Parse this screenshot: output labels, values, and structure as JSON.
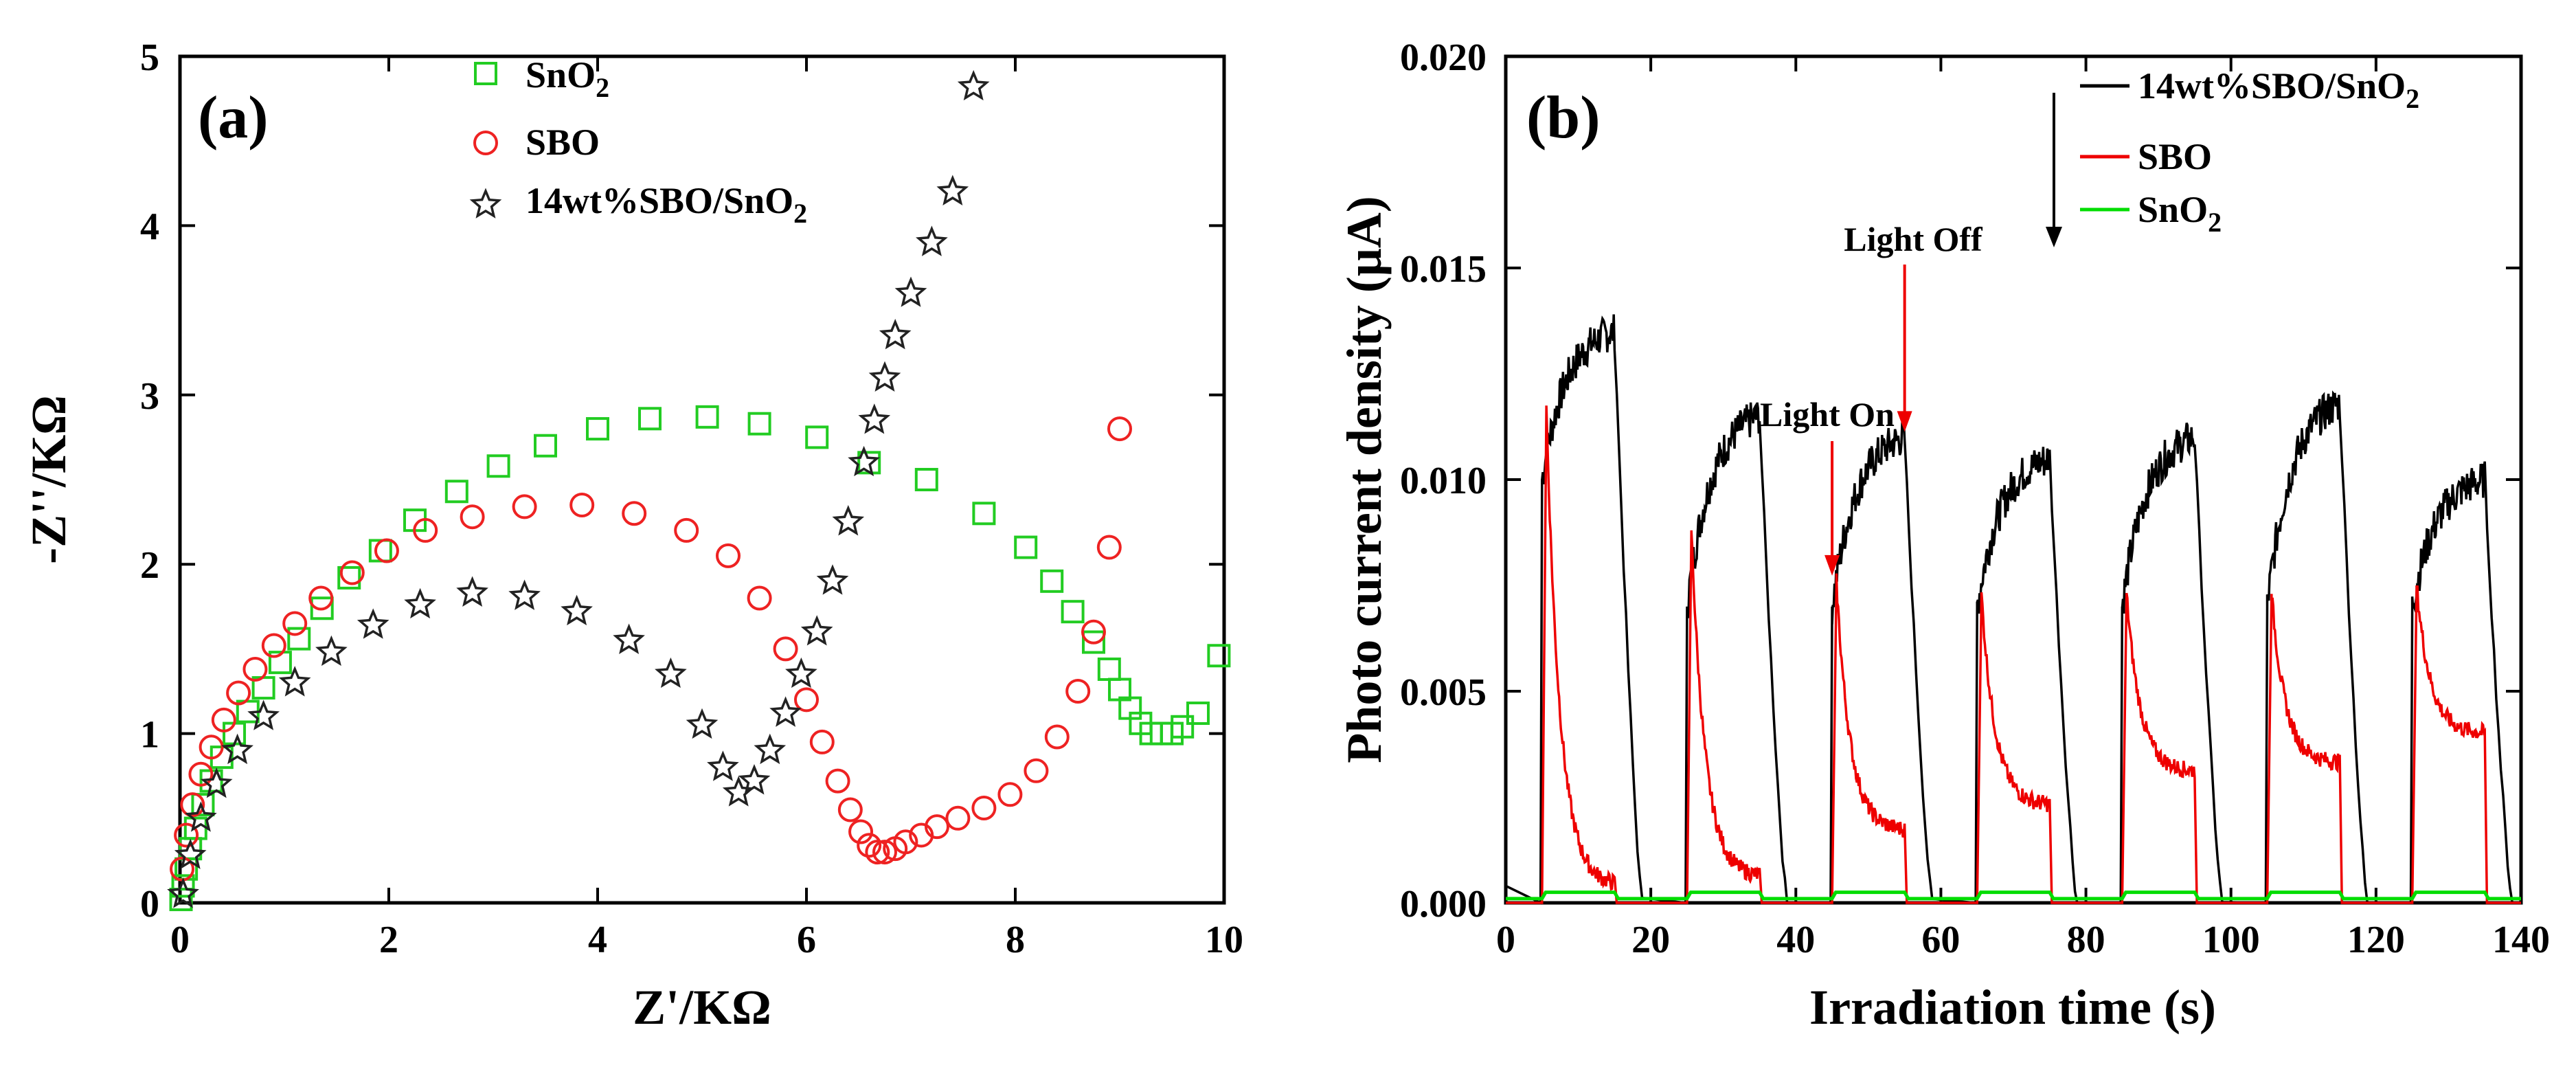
{
  "chart_data": [
    {
      "type": "scatter",
      "panel_label": "(a)",
      "xlabel": "Z'/KΩ",
      "ylabel": "-Z''/KΩ",
      "xlim": [
        0,
        10
      ],
      "ylim": [
        0,
        5
      ],
      "xticks": [
        0,
        2,
        4,
        6,
        8,
        10
      ],
      "yticks": [
        0,
        1,
        2,
        3,
        4,
        5
      ],
      "legend_position": "top-center",
      "series": [
        {
          "name": "SnO",
          "name_sub": "2",
          "color": "#22cc22",
          "marker": "square",
          "x": [
            0.01,
            0.03,
            0.06,
            0.1,
            0.15,
            0.22,
            0.3,
            0.4,
            0.52,
            0.65,
            0.8,
            0.96,
            1.14,
            1.36,
            1.62,
            1.92,
            2.25,
            2.65,
            3.05,
            3.5,
            4.0,
            4.5,
            5.05,
            5.55,
            6.1,
            6.6,
            7.15,
            7.7,
            8.1,
            8.35,
            8.55,
            8.75,
            8.9,
            9.0,
            9.1,
            9.2,
            9.3,
            9.4,
            9.5,
            9.6,
            9.75,
            9.95
          ],
          "y": [
            0.02,
            0.1,
            0.2,
            0.32,
            0.44,
            0.58,
            0.72,
            0.86,
            1.0,
            1.13,
            1.27,
            1.42,
            1.56,
            1.74,
            1.92,
            2.08,
            2.26,
            2.43,
            2.58,
            2.7,
            2.8,
            2.86,
            2.87,
            2.83,
            2.75,
            2.6,
            2.5,
            2.3,
            2.1,
            1.9,
            1.72,
            1.54,
            1.38,
            1.26,
            1.15,
            1.06,
            1.0,
            1.0,
            1.0,
            1.04,
            1.12,
            1.46
          ]
        },
        {
          "name": "SBO",
          "color": "#ee2222",
          "marker": "circle",
          "x": [
            0.02,
            0.06,
            0.12,
            0.2,
            0.3,
            0.42,
            0.56,
            0.72,
            0.9,
            1.1,
            1.35,
            1.65,
            1.98,
            2.35,
            2.8,
            3.3,
            3.85,
            4.35,
            4.85,
            5.25,
            5.55,
            5.8,
            6.0,
            6.15,
            6.3,
            6.42,
            6.52,
            6.6,
            6.68,
            6.75,
            6.85,
            6.95,
            7.1,
            7.25,
            7.45,
            7.7,
            7.95,
            8.2,
            8.4,
            8.6,
            8.75,
            8.9,
            9.0
          ],
          "y": [
            0.2,
            0.4,
            0.58,
            0.76,
            0.92,
            1.08,
            1.24,
            1.38,
            1.52,
            1.65,
            1.8,
            1.95,
            2.08,
            2.2,
            2.28,
            2.34,
            2.35,
            2.3,
            2.2,
            2.05,
            1.8,
            1.5,
            1.2,
            0.95,
            0.72,
            0.55,
            0.42,
            0.34,
            0.3,
            0.3,
            0.32,
            0.36,
            0.4,
            0.45,
            0.5,
            0.56,
            0.64,
            0.78,
            0.98,
            1.25,
            1.6,
            2.1,
            2.8
          ]
        },
        {
          "name": "14wt%SBO/SnO",
          "name_sub": "2",
          "color": "#222222",
          "marker": "star",
          "x": [
            0.03,
            0.1,
            0.2,
            0.35,
            0.55,
            0.8,
            1.1,
            1.45,
            1.85,
            2.3,
            2.8,
            3.3,
            3.8,
            4.3,
            4.7,
            5.0,
            5.2,
            5.35,
            5.5,
            5.65,
            5.8,
            5.95,
            6.1,
            6.25,
            6.4,
            6.55,
            6.65,
            6.75,
            6.85,
            7.0,
            7.2,
            7.4,
            7.6
          ],
          "y": [
            0.05,
            0.28,
            0.5,
            0.7,
            0.9,
            1.1,
            1.3,
            1.48,
            1.64,
            1.76,
            1.83,
            1.81,
            1.72,
            1.55,
            1.35,
            1.05,
            0.8,
            0.65,
            0.72,
            0.9,
            1.12,
            1.35,
            1.6,
            1.9,
            2.25,
            2.6,
            2.85,
            3.1,
            3.35,
            3.6,
            3.9,
            4.2,
            4.82
          ]
        }
      ]
    },
    {
      "type": "line",
      "panel_label": "(b)",
      "xlabel": "Irradiation time (s)",
      "ylabel": "Photo current density (μA)",
      "xlim": [
        0,
        140
      ],
      "ylim": [
        0,
        0.02
      ],
      "xticks": [
        0,
        20,
        40,
        60,
        80,
        100,
        120,
        140
      ],
      "yticks": [
        "0.000",
        "0.005",
        "0.010",
        "0.015",
        "0.020"
      ],
      "legend_position": "top-right",
      "series": [
        {
          "name": "14wt%SBO/SnO",
          "name_sub": "2",
          "color": "#000000",
          "cycles": [
            {
              "on": 5,
              "off": 15,
              "start": 0.01,
              "end": 0.0135,
              "decay_to": 0.0
            },
            {
              "on": 25,
              "off": 35,
              "start": 0.007,
              "end": 0.0115,
              "decay_to": 0.0
            },
            {
              "on": 45,
              "off": 55,
              "start": 0.007,
              "end": 0.011,
              "decay_to": 0.0
            },
            {
              "on": 65,
              "off": 75,
              "start": 0.007,
              "end": 0.0105,
              "decay_to": 0.0
            },
            {
              "on": 85,
              "off": 95,
              "start": 0.007,
              "end": 0.011,
              "decay_to": 0.0
            },
            {
              "on": 105,
              "off": 115,
              "start": 0.007,
              "end": 0.0118,
              "decay_to": 0.0
            },
            {
              "on": 125,
              "off": 135,
              "start": 0.007,
              "end": 0.01,
              "decay_to": 0.0
            }
          ]
        },
        {
          "name": "SBO",
          "color": "#ee0000",
          "cycles": [
            {
              "on": 5,
              "off": 15,
              "peak": 0.0117,
              "tail": 0.0004
            },
            {
              "on": 25,
              "off": 35,
              "peak": 0.0088,
              "tail": 0.0006
            },
            {
              "on": 45,
              "off": 55,
              "peak": 0.0076,
              "tail": 0.0017
            },
            {
              "on": 65,
              "off": 75,
              "peak": 0.0073,
              "tail": 0.0023
            },
            {
              "on": 85,
              "off": 95,
              "peak": 0.0073,
              "tail": 0.0031
            },
            {
              "on": 105,
              "off": 115,
              "peak": 0.0073,
              "tail": 0.0033
            },
            {
              "on": 125,
              "off": 135,
              "peak": 0.0075,
              "tail": 0.004
            }
          ]
        },
        {
          "name": "SnO",
          "name_sub": "2",
          "color": "#00dd00",
          "cycles": [
            {
              "on": 5,
              "off": 15,
              "level": 0.00025
            },
            {
              "on": 25,
              "off": 35,
              "level": 0.00025
            },
            {
              "on": 45,
              "off": 55,
              "level": 0.00025
            },
            {
              "on": 65,
              "off": 75,
              "level": 0.00025
            },
            {
              "on": 85,
              "off": 95,
              "level": 0.00025
            },
            {
              "on": 105,
              "off": 115,
              "level": 0.00025
            },
            {
              "on": 125,
              "off": 135,
              "level": 0.00025
            }
          ]
        }
      ],
      "annotations": [
        {
          "text": "Light On",
          "x": 45,
          "y": 0.0076
        },
        {
          "text": "Light Off",
          "x": 55,
          "y": 0.011
        }
      ]
    }
  ]
}
